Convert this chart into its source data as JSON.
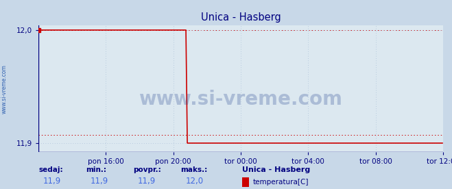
{
  "title": "Unica - Hasberg",
  "title_color": "#000080",
  "bg_color": "#c8d8e8",
  "plot_bg_color": "#dce8f0",
  "line_color": "#cc0000",
  "grid_color": "#aac0d8",
  "watermark": "www.si-vreme.com",
  "watermark_color": "#1a3a8a",
  "sidebar_text": "www.si-vreme.com",
  "sidebar_color": "#3060b0",
  "footer_labels": [
    "sedaj:",
    "min.:",
    "povpr.:",
    "maks.:"
  ],
  "footer_values": [
    "11,9",
    "11,9",
    "11,9",
    "12,0"
  ],
  "footer_station": "Unica - Hasberg",
  "footer_series": "temperatura[C]",
  "footer_swatch_color": "#cc0000",
  "y_min": 11.9,
  "y_max": 12.0,
  "y_ticks": [
    11.9,
    12.0
  ],
  "x_tick_labels": [
    "pon 16:00",
    "pon 20:00",
    "tor 00:00",
    "tor 04:00",
    "tor 08:00",
    "tor 12:00"
  ],
  "x_tick_positions": [
    48,
    96,
    144,
    192,
    240,
    288
  ],
  "drop_x": 105,
  "value_high": 12.0,
  "value_low": 11.9,
  "avg_value": 11.907,
  "n_points": 289,
  "spine_color": "#000080",
  "tick_color": "#000080",
  "axis_arrow_color": "#cc0000"
}
